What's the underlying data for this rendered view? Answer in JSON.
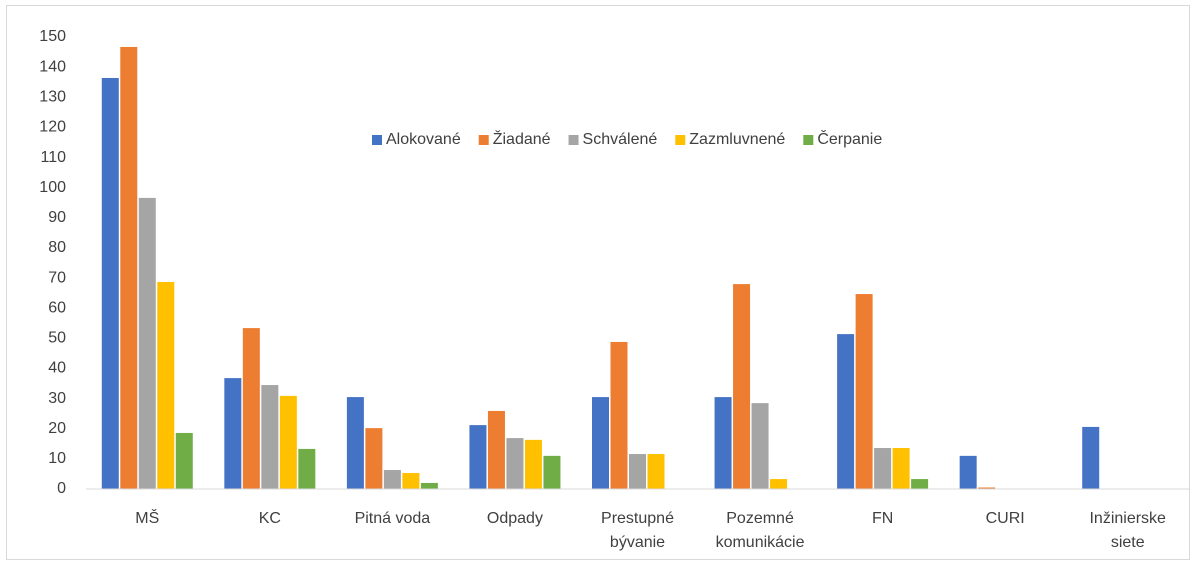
{
  "chart_data": {
    "type": "bar",
    "categories": [
      "MŠ",
      "KC",
      "Pitná voda",
      "Odpady",
      "Prestupné bývanie",
      "Pozemné komunikácie",
      "FN",
      "CURI",
      "Inžinierske siete"
    ],
    "series": [
      {
        "name": "Alokované",
        "color": "#4472c4",
        "values": [
          136.4,
          36.8,
          30.5,
          21.2,
          30.5,
          30.5,
          51.4,
          11,
          20.6
        ]
      },
      {
        "name": "Žiadané",
        "color": "#ed7d31",
        "values": [
          146.7,
          53.4,
          20.2,
          25.9,
          48.8,
          68,
          64.7,
          0.5,
          0
        ]
      },
      {
        "name": "Schválené",
        "color": "#a5a5a5",
        "values": [
          96.6,
          34.5,
          6.3,
          16.9,
          11.6,
          28.5,
          13.6,
          0,
          0
        ]
      },
      {
        "name": "Zazmluvnené",
        "color": "#ffc000",
        "values": [
          68.7,
          30.9,
          5.3,
          16.3,
          11.6,
          3.3,
          13.6,
          0,
          0
        ]
      },
      {
        "name": "Čerpanie",
        "color": "#70ad47",
        "values": [
          18.6,
          13.3,
          2,
          11,
          0,
          0,
          3.3,
          0,
          0
        ]
      }
    ],
    "ylim": [
      0,
      150
    ],
    "yticks": [
      0,
      10,
      20,
      30,
      40,
      50,
      60,
      70,
      80,
      90,
      100,
      110,
      120,
      130,
      140,
      150
    ],
    "grid": false,
    "legend": "top"
  }
}
